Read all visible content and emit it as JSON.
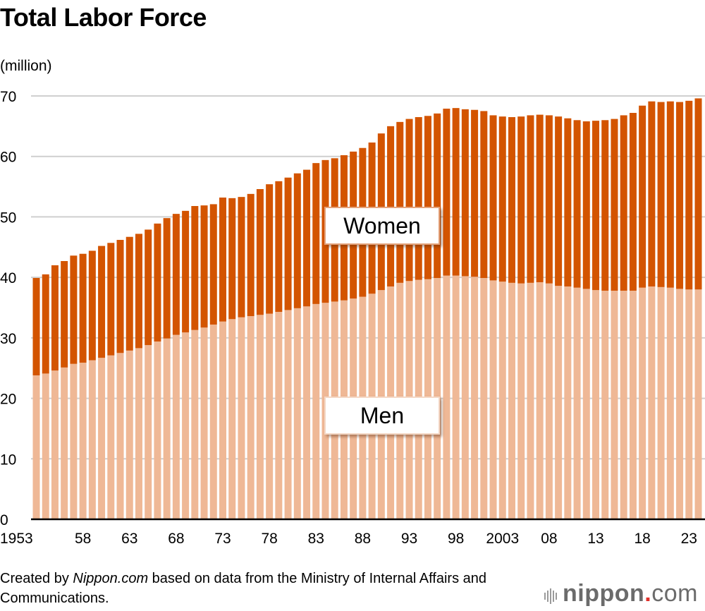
{
  "chart_data": {
    "type": "bar",
    "stacked": true,
    "title": "Total Labor Force",
    "ylabel": "(million)",
    "xlabel": "",
    "ylim": [
      0,
      70
    ],
    "yticks": [
      0,
      10,
      20,
      30,
      40,
      50,
      60,
      70
    ],
    "grid": true,
    "x": [
      1953,
      1954,
      1955,
      1956,
      1957,
      1958,
      1959,
      1960,
      1961,
      1962,
      1963,
      1964,
      1965,
      1966,
      1967,
      1968,
      1969,
      1970,
      1971,
      1972,
      1973,
      1974,
      1975,
      1976,
      1977,
      1978,
      1979,
      1980,
      1981,
      1982,
      1983,
      1984,
      1985,
      1986,
      1987,
      1988,
      1989,
      1990,
      1991,
      1992,
      1993,
      1994,
      1995,
      1996,
      1997,
      1998,
      1999,
      2000,
      2001,
      2002,
      2003,
      2004,
      2005,
      2006,
      2007,
      2008,
      2009,
      2010,
      2011,
      2012,
      2013,
      2014,
      2015,
      2016,
      2017,
      2018,
      2019,
      2020,
      2021,
      2022,
      2023,
      2024
    ],
    "xtick_labels": [
      {
        "year": 1953,
        "label": "1953"
      },
      {
        "year": 1958,
        "label": "58"
      },
      {
        "year": 1963,
        "label": "63"
      },
      {
        "year": 1968,
        "label": "68"
      },
      {
        "year": 1973,
        "label": "73"
      },
      {
        "year": 1978,
        "label": "78"
      },
      {
        "year": 1983,
        "label": "83"
      },
      {
        "year": 1988,
        "label": "88"
      },
      {
        "year": 1993,
        "label": "93"
      },
      {
        "year": 1998,
        "label": "98"
      },
      {
        "year": 2003,
        "label": "2003"
      },
      {
        "year": 2008,
        "label": "08"
      },
      {
        "year": 2013,
        "label": "13"
      },
      {
        "year": 2018,
        "label": "18"
      },
      {
        "year": 2023,
        "label": "23"
      }
    ],
    "series": [
      {
        "name": "Men",
        "color": "#efb896",
        "values": [
          23.8,
          24.1,
          24.6,
          25.1,
          25.7,
          25.9,
          26.3,
          26.7,
          27.1,
          27.5,
          27.9,
          28.3,
          28.8,
          29.4,
          29.9,
          30.5,
          30.9,
          31.3,
          31.7,
          32.2,
          32.7,
          33.1,
          33.4,
          33.6,
          33.8,
          34.0,
          34.3,
          34.6,
          34.9,
          35.2,
          35.6,
          35.8,
          36.0,
          36.2,
          36.5,
          36.8,
          37.3,
          37.9,
          38.5,
          39.1,
          39.4,
          39.6,
          39.7,
          39.9,
          40.3,
          40.3,
          40.2,
          40.1,
          39.9,
          39.5,
          39.3,
          39.1,
          39.0,
          39.1,
          39.2,
          39.0,
          38.6,
          38.5,
          38.3,
          38.1,
          37.9,
          37.8,
          37.8,
          37.8,
          37.8,
          38.3,
          38.5,
          38.4,
          38.3,
          38.1,
          38.0,
          38.0
        ]
      },
      {
        "name": "Women",
        "color": "#d35400",
        "values": [
          16.1,
          16.4,
          17.4,
          17.6,
          17.9,
          18.0,
          18.1,
          18.5,
          18.6,
          18.7,
          18.8,
          18.9,
          19.1,
          19.5,
          19.9,
          20.0,
          20.1,
          20.5,
          20.2,
          19.9,
          20.5,
          20.0,
          19.9,
          20.2,
          20.8,
          21.4,
          21.6,
          21.9,
          22.3,
          22.6,
          23.3,
          23.6,
          23.7,
          24.0,
          24.3,
          24.6,
          25.0,
          25.9,
          26.5,
          26.6,
          26.8,
          26.9,
          27.0,
          27.2,
          27.6,
          27.7,
          27.6,
          27.6,
          27.6,
          27.3,
          27.3,
          27.4,
          27.6,
          27.7,
          27.7,
          27.8,
          28.0,
          27.8,
          27.7,
          27.7,
          28.0,
          28.2,
          28.4,
          29.0,
          29.4,
          30.1,
          30.6,
          30.6,
          30.8,
          30.9,
          31.2,
          31.6
        ]
      }
    ],
    "series_labels": [
      "Women",
      "Men"
    ]
  },
  "title": "Total Labor Force",
  "unit_label": "(million)",
  "footer": {
    "prefix": "Created by ",
    "source_site": "Nippon.com",
    "suffix": " based on data from the Ministry of Internal Affairs and Communications."
  },
  "logo": {
    "name": "nippon",
    "dot": ".",
    "tld": "com"
  }
}
